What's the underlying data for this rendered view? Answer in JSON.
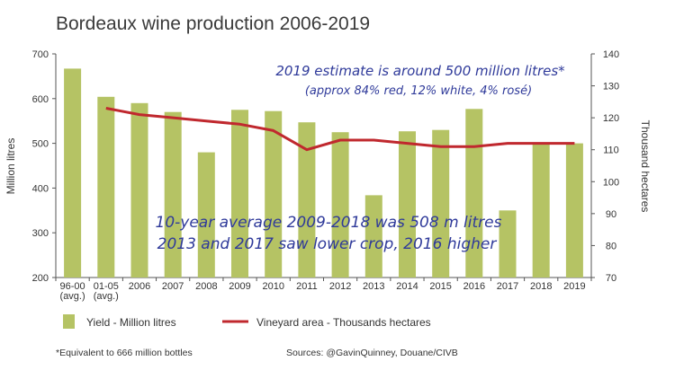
{
  "chart_data": {
    "type": "bar",
    "title": "Bordeaux wine production 2006-2019",
    "categories": [
      "96-00",
      "01-05",
      "2006",
      "2007",
      "2008",
      "2009",
      "2010",
      "2011",
      "2012",
      "2013",
      "2014",
      "2015",
      "2016",
      "2017",
      "2018",
      "2019"
    ],
    "category_sublabels": [
      "(avg.)",
      "(avg.)",
      "",
      "",
      "",
      "",
      "",
      "",
      "",
      "",
      "",
      "",
      "",
      "",
      "",
      ""
    ],
    "series": [
      {
        "name": "Yield - Million litres",
        "type": "bar",
        "axis": "left",
        "color": "#b5c364",
        "values": [
          667,
          604,
          590,
          570,
          480,
          575,
          572,
          547,
          525,
          384,
          527,
          530,
          577,
          350,
          502,
          500
        ]
      },
      {
        "name": "Vineyard area - Thousands hectares",
        "type": "line",
        "axis": "right",
        "color": "#c0282e",
        "values": [
          null,
          123,
          121,
          120,
          119,
          118,
          116,
          110,
          113,
          113,
          112,
          111,
          111,
          112,
          112,
          112
        ]
      }
    ],
    "ylabel": "Million litres",
    "ylim": [
      200,
      700
    ],
    "yticks": [
      200,
      300,
      400,
      500,
      600,
      700
    ],
    "y2label": "Thousand hectares",
    "y2lim": [
      70,
      140
    ],
    "y2ticks": [
      70,
      80,
      90,
      100,
      110,
      120,
      130,
      140
    ],
    "grid": false,
    "legend_position": "bottom-left"
  },
  "annotations": {
    "estimate_line1": "2019 estimate is around 500 million litres*",
    "estimate_line2": "(approx 84% red, 12% white, 4% rosé)",
    "average_line1": "10-year average 2009-2018 was 508 m litres",
    "average_line2": "2013 and 2017 saw lower crop, 2016 higher"
  },
  "legend": {
    "bar_label": "Yield - Million litres",
    "line_label": "Vineyard area - Thousands hectares"
  },
  "footnotes": {
    "left": "*Equivalent to 666 million bottles",
    "right": "Sources: @GavinQuinney, Douane/CIVB"
  }
}
